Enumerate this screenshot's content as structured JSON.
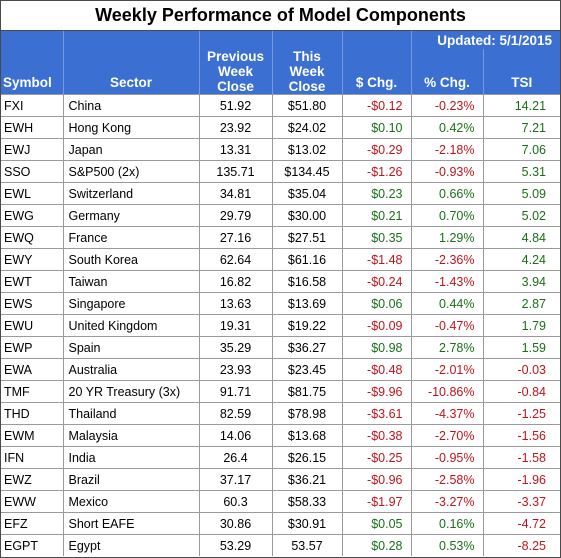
{
  "title": "Weekly Performance of Model Components",
  "updated": "Updated:  5/1/2015",
  "headers": {
    "symbol": "Symbol",
    "sector": "Sector",
    "prev_close": "Previous Week Close",
    "this_close": "This Week Close",
    "dollar_chg": "$ Chg.",
    "pct_chg": "% Chg.",
    "tsi": "TSI"
  },
  "colors": {
    "header_bg": "#3b6fd1",
    "positive": "#1a6e1a",
    "negative": "#c0141c"
  },
  "rows": [
    {
      "symbol": "FXI",
      "sector": "China",
      "prev": "51.92",
      "this": "$51.80",
      "chg": "-$0.12",
      "pct": "-0.23%",
      "tsi": "14.21",
      "chg_sign": "neg",
      "tsi_sign": "pos"
    },
    {
      "symbol": "EWH",
      "sector": "Hong Kong",
      "prev": "23.92",
      "this": "$24.02",
      "chg": "$0.10",
      "pct": "0.42%",
      "tsi": "7.21",
      "chg_sign": "pos",
      "tsi_sign": "pos"
    },
    {
      "symbol": "EWJ",
      "sector": "Japan",
      "prev": "13.31",
      "this": "$13.02",
      "chg": "-$0.29",
      "pct": "-2.18%",
      "tsi": "7.06",
      "chg_sign": "neg",
      "tsi_sign": "pos"
    },
    {
      "symbol": "SSO",
      "sector": "S&P500 (2x)",
      "prev": "135.71",
      "this": "$134.45",
      "chg": "-$1.26",
      "pct": "-0.93%",
      "tsi": "5.31",
      "chg_sign": "neg",
      "tsi_sign": "pos"
    },
    {
      "symbol": "EWL",
      "sector": "Switzerland",
      "prev": "34.81",
      "this": "$35.04",
      "chg": "$0.23",
      "pct": "0.66%",
      "tsi": "5.09",
      "chg_sign": "pos",
      "tsi_sign": "pos"
    },
    {
      "symbol": "EWG",
      "sector": "Germany",
      "prev": "29.79",
      "this": "$30.00",
      "chg": "$0.21",
      "pct": "0.70%",
      "tsi": "5.02",
      "chg_sign": "pos",
      "tsi_sign": "pos"
    },
    {
      "symbol": "EWQ",
      "sector": "France",
      "prev": "27.16",
      "this": "$27.51",
      "chg": "$0.35",
      "pct": "1.29%",
      "tsi": "4.84",
      "chg_sign": "pos",
      "tsi_sign": "pos"
    },
    {
      "symbol": "EWY",
      "sector": "South Korea",
      "prev": "62.64",
      "this": "$61.16",
      "chg": "-$1.48",
      "pct": "-2.36%",
      "tsi": "4.24",
      "chg_sign": "neg",
      "tsi_sign": "pos"
    },
    {
      "symbol": "EWT",
      "sector": "Taiwan",
      "prev": "16.82",
      "this": "$16.58",
      "chg": "-$0.24",
      "pct": "-1.43%",
      "tsi": "3.94",
      "chg_sign": "neg",
      "tsi_sign": "pos"
    },
    {
      "symbol": "EWS",
      "sector": "Singapore",
      "prev": "13.63",
      "this": "$13.69",
      "chg": "$0.06",
      "pct": "0.44%",
      "tsi": "2.87",
      "chg_sign": "pos",
      "tsi_sign": "pos"
    },
    {
      "symbol": "EWU",
      "sector": "United Kingdom",
      "prev": "19.31",
      "this": "$19.22",
      "chg": "-$0.09",
      "pct": "-0.47%",
      "tsi": "1.79",
      "chg_sign": "neg",
      "tsi_sign": "pos"
    },
    {
      "symbol": "EWP",
      "sector": "Spain",
      "prev": "35.29",
      "this": "$36.27",
      "chg": "$0.98",
      "pct": "2.78%",
      "tsi": "1.59",
      "chg_sign": "pos",
      "tsi_sign": "pos"
    },
    {
      "symbol": "EWA",
      "sector": "Australia",
      "prev": "23.93",
      "this": "$23.45",
      "chg": "-$0.48",
      "pct": "-2.01%",
      "tsi": "-0.03",
      "chg_sign": "neg",
      "tsi_sign": "neg"
    },
    {
      "symbol": "TMF",
      "sector": "20 YR Treasury  (3x)",
      "prev": "91.71",
      "this": "$81.75",
      "chg": "-$9.96",
      "pct": "-10.86%",
      "tsi": "-0.84",
      "chg_sign": "neg",
      "tsi_sign": "neg"
    },
    {
      "symbol": "THD",
      "sector": "Thailand",
      "prev": "82.59",
      "this": "$78.98",
      "chg": "-$3.61",
      "pct": "-4.37%",
      "tsi": "-1.25",
      "chg_sign": "neg",
      "tsi_sign": "neg"
    },
    {
      "symbol": "EWM",
      "sector": "Malaysia",
      "prev": "14.06",
      "this": "$13.68",
      "chg": "-$0.38",
      "pct": "-2.70%",
      "tsi": "-1.56",
      "chg_sign": "neg",
      "tsi_sign": "neg"
    },
    {
      "symbol": "IFN",
      "sector": "India",
      "prev": "26.4",
      "this": "$26.15",
      "chg": "-$0.25",
      "pct": "-0.95%",
      "tsi": "-1.58",
      "chg_sign": "neg",
      "tsi_sign": "neg"
    },
    {
      "symbol": "EWZ",
      "sector": "Brazil",
      "prev": "37.17",
      "this": "$36.21",
      "chg": "-$0.96",
      "pct": "-2.58%",
      "tsi": "-1.96",
      "chg_sign": "neg",
      "tsi_sign": "neg"
    },
    {
      "symbol": "EWW",
      "sector": "Mexico",
      "prev": "60.3",
      "this": "$58.33",
      "chg": "-$1.97",
      "pct": "-3.27%",
      "tsi": "-3.37",
      "chg_sign": "neg",
      "tsi_sign": "neg"
    },
    {
      "symbol": "EFZ",
      "sector": "Short EAFE",
      "prev": "30.86",
      "this": "$30.91",
      "chg": "$0.05",
      "pct": "0.16%",
      "tsi": "-4.72",
      "chg_sign": "pos",
      "tsi_sign": "neg"
    },
    {
      "symbol": "EGPT",
      "sector": "Egypt",
      "prev": "53.29",
      "this": "53.57",
      "chg": "$0.28",
      "pct": "0.53%",
      "tsi": "-8.25",
      "chg_sign": "pos",
      "tsi_sign": "neg"
    }
  ]
}
